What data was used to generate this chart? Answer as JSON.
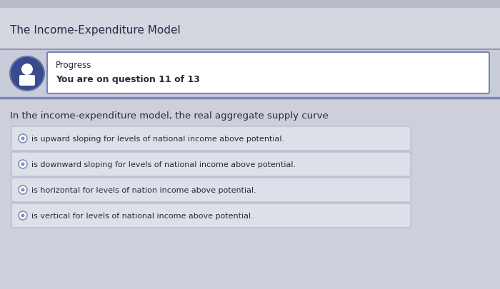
{
  "title": "The Income-Expenditure Model",
  "title_fontsize": 11,
  "title_color": "#2a2a4a",
  "progress_label": "Progress",
  "progress_text": "You are on question 11 of 13",
  "question": "In the income-expenditure model, the real aggregate supply curve",
  "question_fontsize": 9.5,
  "options": [
    "is upward sloping for levels of national income above potential.",
    "is downward sloping for levels of national income above potential.",
    "is horizontal for levels of nation income above potential.",
    "is vertical for levels of national income above potential."
  ],
  "bg_color": "#cdd0da",
  "header_bg": "#d8dae2",
  "progress_bg": "#c8ccd8",
  "progress_border_top": "#9099bb",
  "progress_border_bottom": "#7a84b8",
  "option_bg": "#dde0e8",
  "option_border": "#b0b8cc",
  "option_text_color": "#2a2a3a",
  "radio_outer_color": "#8090b8",
  "radio_inner_color": "#8090b8",
  "icon_bg": "#3a4a8c",
  "progress_text_color": "#2a2a3a",
  "option_fontsize": 8.0,
  "header_top_color": "#7a7aaa",
  "title_area_bg": "#d4d6e0",
  "separator_color": "#9090aa"
}
